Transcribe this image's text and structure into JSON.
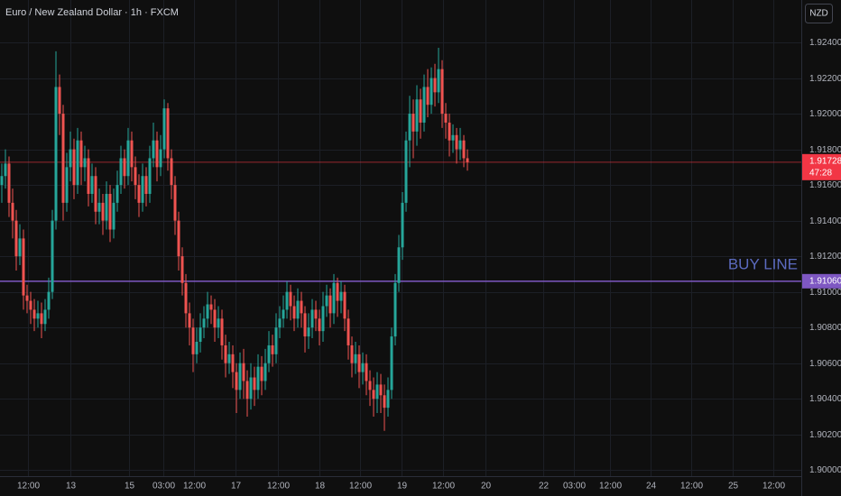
{
  "chart_data": {
    "type": "candlestick",
    "title": "Euro / New Zealand Dollar · 1h · FXCM",
    "currency": "NZD",
    "up_color": "#26a69a",
    "down_color": "#ef5350",
    "grid": true,
    "open": [
      1.916,
      1.9165,
      1.9172,
      1.915,
      1.914,
      1.912,
      1.913,
      1.9098,
      1.9095,
      1.909,
      1.9085,
      1.9088,
      1.9082,
      1.909,
      1.91,
      1.914,
      1.9215,
      1.92,
      1.915,
      1.917,
      1.918,
      1.916,
      1.9185,
      1.917,
      1.9175,
      1.9155,
      1.9165,
      1.9145,
      1.915,
      1.914,
      1.9155,
      1.9135,
      1.915,
      1.916,
      1.9175,
      1.9165,
      1.9185,
      1.917,
      1.916,
      1.915,
      1.9165,
      1.9155,
      1.9175,
      1.9185,
      1.917,
      1.918,
      1.9203,
      1.9175,
      1.916,
      1.914,
      1.912,
      1.9105,
      1.9088,
      1.908,
      1.9065,
      1.9072,
      1.908,
      1.9085,
      1.9093,
      1.909,
      1.908,
      1.9085,
      1.907,
      1.906,
      1.9065,
      1.9055,
      1.9045,
      1.906,
      1.905,
      1.904,
      1.9052,
      1.9045,
      1.9058,
      1.905,
      1.906,
      1.907,
      1.9065,
      1.908,
      1.9085,
      1.909,
      1.91,
      1.9092,
      1.9085,
      1.9095,
      1.9088,
      1.9075,
      1.908,
      1.909,
      1.9085,
      1.9078,
      1.9092,
      1.9098,
      1.9088,
      1.9105,
      1.9095,
      1.91,
      1.9085,
      1.907,
      1.906,
      1.9065,
      1.9055,
      1.906,
      1.905,
      1.9045,
      1.904,
      1.9048,
      1.9042,
      1.9035,
      1.9045,
      1.9075,
      1.9105,
      1.9125,
      1.915,
      1.9185,
      1.92,
      1.919,
      1.9208,
      1.9195,
      1.9215,
      1.9205,
      1.922,
      1.9212,
      1.9225,
      1.92,
      1.9195,
      1.9185,
      1.9188,
      1.918,
      1.9185,
      1.9175
    ],
    "high": [
      1.9172,
      1.918,
      1.9176,
      1.9158,
      1.9146,
      1.9138,
      1.9135,
      1.9104,
      1.91,
      1.9096,
      1.9095,
      1.9094,
      1.9096,
      1.9108,
      1.9146,
      1.9235,
      1.9222,
      1.9205,
      1.9178,
      1.919,
      1.9186,
      1.9192,
      1.919,
      1.9182,
      1.918,
      1.9172,
      1.917,
      1.9158,
      1.9155,
      1.9162,
      1.916,
      1.9158,
      1.9168,
      1.9182,
      1.918,
      1.9192,
      1.919,
      1.9176,
      1.9166,
      1.9172,
      1.917,
      1.9182,
      1.9195,
      1.919,
      1.9188,
      1.9208,
      1.9206,
      1.918,
      1.9165,
      1.9145,
      1.9125,
      1.911,
      1.9094,
      1.9085,
      1.908,
      1.9088,
      1.9092,
      1.91,
      1.9098,
      1.9096,
      1.9092,
      1.909,
      1.9076,
      1.9072,
      1.907,
      1.906,
      1.9066,
      1.9068,
      1.9056,
      1.906,
      1.9058,
      1.9065,
      1.9064,
      1.9068,
      1.9078,
      1.9076,
      1.9088,
      1.9092,
      1.9098,
      1.9106,
      1.9104,
      1.9098,
      1.9102,
      1.91,
      1.9092,
      1.9088,
      1.9096,
      1.9095,
      1.909,
      1.91,
      1.9104,
      1.9102,
      1.911,
      1.9108,
      1.9106,
      1.9104,
      1.909,
      1.9075,
      1.9072,
      1.907,
      1.9066,
      1.9065,
      1.9056,
      1.9052,
      1.9055,
      1.9054,
      1.9048,
      1.9052,
      1.908,
      1.911,
      1.9132,
      1.9156,
      1.919,
      1.921,
      1.9208,
      1.9216,
      1.9214,
      1.9222,
      1.9225,
      1.9226,
      1.9228,
      1.9237,
      1.923,
      1.9206,
      1.92,
      1.9194,
      1.9192,
      1.9192,
      1.9188,
      1.918
    ],
    "low": [
      1.915,
      1.9158,
      1.9142,
      1.913,
      1.9112,
      1.9115,
      1.909,
      1.9088,
      1.9082,
      1.9078,
      1.908,
      1.9074,
      1.9078,
      1.9085,
      1.9096,
      1.9135,
      1.9188,
      1.914,
      1.9145,
      1.9162,
      1.9152,
      1.9155,
      1.916,
      1.9162,
      1.9148,
      1.915,
      1.9138,
      1.9138,
      1.9132,
      1.9135,
      1.9128,
      1.913,
      1.9145,
      1.9155,
      1.9158,
      1.916,
      1.9162,
      1.9152,
      1.9142,
      1.9145,
      1.9148,
      1.915,
      1.917,
      1.9162,
      1.9165,
      1.9175,
      1.9168,
      1.9152,
      1.9132,
      1.9112,
      1.9098,
      1.908,
      1.907,
      1.9055,
      1.906,
      1.9066,
      1.9074,
      1.908,
      1.9082,
      1.9072,
      1.9074,
      1.9062,
      1.9052,
      1.9054,
      1.9046,
      1.9032,
      1.904,
      1.904,
      1.903,
      1.9034,
      1.9036,
      1.904,
      1.9042,
      1.9045,
      1.9055,
      1.9058,
      1.906,
      1.9074,
      1.908,
      1.9085,
      1.9084,
      1.9078,
      1.908,
      1.908,
      1.9066,
      1.9068,
      1.9074,
      1.9078,
      1.907,
      1.9072,
      1.9086,
      1.908,
      1.9082,
      1.9086,
      1.9088,
      1.9078,
      1.9062,
      1.9052,
      1.9054,
      1.9046,
      1.9048,
      1.9042,
      1.9036,
      1.903,
      1.9032,
      1.9032,
      1.9022,
      1.903,
      1.904,
      1.907,
      1.91,
      1.9118,
      1.9145,
      1.917,
      1.9175,
      1.9182,
      1.9186,
      1.919,
      1.9198,
      1.92,
      1.9204,
      1.9206,
      1.9192,
      1.9186,
      1.9176,
      1.9178,
      1.9172,
      1.9174,
      1.917,
      1.9168
    ],
    "close": [
      1.9165,
      1.9172,
      1.915,
      1.914,
      1.912,
      1.913,
      1.9098,
      1.9095,
      1.909,
      1.9085,
      1.9088,
      1.9082,
      1.909,
      1.91,
      1.914,
      1.9215,
      1.92,
      1.915,
      1.917,
      1.918,
      1.916,
      1.9185,
      1.917,
      1.9175,
      1.9155,
      1.9165,
      1.9145,
      1.915,
      1.914,
      1.9155,
      1.9135,
      1.915,
      1.916,
      1.9175,
      1.9165,
      1.9185,
      1.917,
      1.916,
      1.915,
      1.9165,
      1.9155,
      1.9175,
      1.9185,
      1.917,
      1.918,
      1.9203,
      1.9175,
      1.916,
      1.914,
      1.912,
      1.9105,
      1.9088,
      1.908,
      1.9065,
      1.9072,
      1.908,
      1.9085,
      1.9093,
      1.909,
      1.908,
      1.9085,
      1.907,
      1.906,
      1.9065,
      1.9055,
      1.9045,
      1.906,
      1.905,
      1.904,
      1.9052,
      1.9045,
      1.9058,
      1.905,
      1.906,
      1.907,
      1.9065,
      1.908,
      1.9085,
      1.909,
      1.91,
      1.9092,
      1.9085,
      1.9095,
      1.9088,
      1.9075,
      1.908,
      1.909,
      1.9085,
      1.9078,
      1.9092,
      1.9098,
      1.9088,
      1.9105,
      1.9095,
      1.91,
      1.9085,
      1.907,
      1.906,
      1.9065,
      1.9055,
      1.906,
      1.905,
      1.9045,
      1.904,
      1.9048,
      1.9042,
      1.9035,
      1.9045,
      1.9075,
      1.9105,
      1.9125,
      1.915,
      1.9185,
      1.92,
      1.919,
      1.9208,
      1.9195,
      1.9215,
      1.9205,
      1.922,
      1.9212,
      1.9225,
      1.92,
      1.9195,
      1.9185,
      1.9188,
      1.918,
      1.9185,
      1.9175,
      1.91728
    ],
    "ylim": [
      1.89966,
      1.92638
    ],
    "yticks": [
      {
        "value": 1.9,
        "label": "1.90000"
      },
      {
        "value": 1.902,
        "label": "1.90200"
      },
      {
        "value": 1.904,
        "label": "1.90400"
      },
      {
        "value": 1.906,
        "label": "1.90600"
      },
      {
        "value": 1.908,
        "label": "1.90800"
      },
      {
        "value": 1.91,
        "label": "1.91000"
      },
      {
        "value": 1.912,
        "label": "1.91200"
      },
      {
        "value": 1.914,
        "label": "1.91400"
      },
      {
        "value": 1.916,
        "label": "1.91600"
      },
      {
        "value": 1.918,
        "label": "1.91800"
      },
      {
        "value": 1.92,
        "label": "1.92000"
      },
      {
        "value": 1.922,
        "label": "1.92200"
      },
      {
        "value": 1.924,
        "label": "1.92400"
      }
    ],
    "xlim": [
      0,
      222
    ],
    "xticks": [
      {
        "value": 7.75,
        "label": "12:00"
      },
      {
        "value": 19.5,
        "label": "13"
      },
      {
        "value": 35.75,
        "label": "15"
      },
      {
        "value": 45.25,
        "label": "03:00"
      },
      {
        "value": 53.75,
        "label": "12:00"
      },
      {
        "value": 65.25,
        "label": "17"
      },
      {
        "value": 77,
        "label": "12:00"
      },
      {
        "value": 88.5,
        "label": "18"
      },
      {
        "value": 99.75,
        "label": "12:00"
      },
      {
        "value": 111.25,
        "label": "19"
      },
      {
        "value": 122.75,
        "label": "12:00"
      },
      {
        "value": 134.5,
        "label": "20"
      },
      {
        "value": 150.5,
        "label": "22"
      },
      {
        "value": 159,
        "label": "03:00"
      },
      {
        "value": 169,
        "label": "12:00"
      },
      {
        "value": 180.25,
        "label": "24"
      },
      {
        "value": 191.5,
        "label": "12:00"
      },
      {
        "value": 203,
        "label": "25"
      },
      {
        "value": 214.25,
        "label": "12:00"
      }
    ],
    "price_line": {
      "value": 1.91728,
      "label": "1.91728",
      "countdown": "47:28",
      "color": "#f23645"
    },
    "horizontal_line": {
      "value": 1.9106,
      "label": "1.91060",
      "text": "BUY LINE",
      "color": "#7e57c2",
      "text_color": "#5c6bc0"
    }
  }
}
